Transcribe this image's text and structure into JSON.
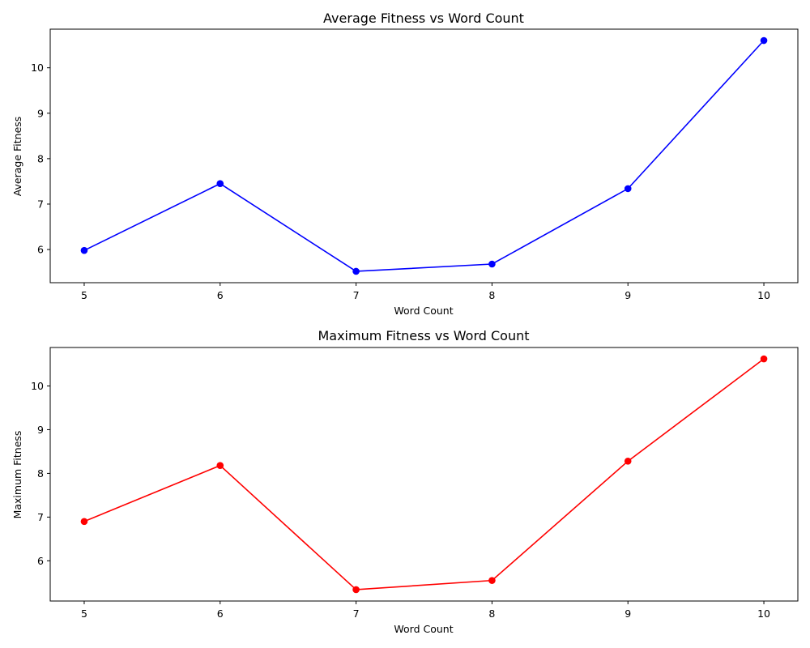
{
  "chart_data": [
    {
      "type": "line",
      "title": "Average Fitness vs Word Count",
      "xlabel": "Word Count",
      "ylabel": "Average Fitness",
      "x": [
        5,
        6,
        7,
        8,
        9,
        10
      ],
      "series": [
        {
          "values": [
            5.98,
            7.45,
            5.52,
            5.68,
            7.34,
            10.6
          ],
          "color": "#0000ff",
          "marker": "circle"
        }
      ],
      "xlim": [
        4.75,
        10.25
      ],
      "ylim": [
        5.27,
        10.85
      ],
      "xticks": [
        5,
        6,
        7,
        8,
        9,
        10
      ],
      "yticks": [
        6,
        7,
        8,
        9,
        10
      ],
      "grid": false
    },
    {
      "type": "line",
      "title": "Maximum Fitness vs Word Count",
      "xlabel": "Word Count",
      "ylabel": "Maximum Fitness",
      "x": [
        5,
        6,
        7,
        8,
        9,
        10
      ],
      "series": [
        {
          "values": [
            6.9,
            8.18,
            5.34,
            5.55,
            8.28,
            10.62
          ],
          "color": "#ff0000",
          "marker": "circle"
        }
      ],
      "xlim": [
        4.75,
        10.25
      ],
      "ylim": [
        5.08,
        10.88
      ],
      "xticks": [
        5,
        6,
        7,
        8,
        9,
        10
      ],
      "yticks": [
        6,
        7,
        8,
        9,
        10
      ],
      "grid": false
    }
  ]
}
